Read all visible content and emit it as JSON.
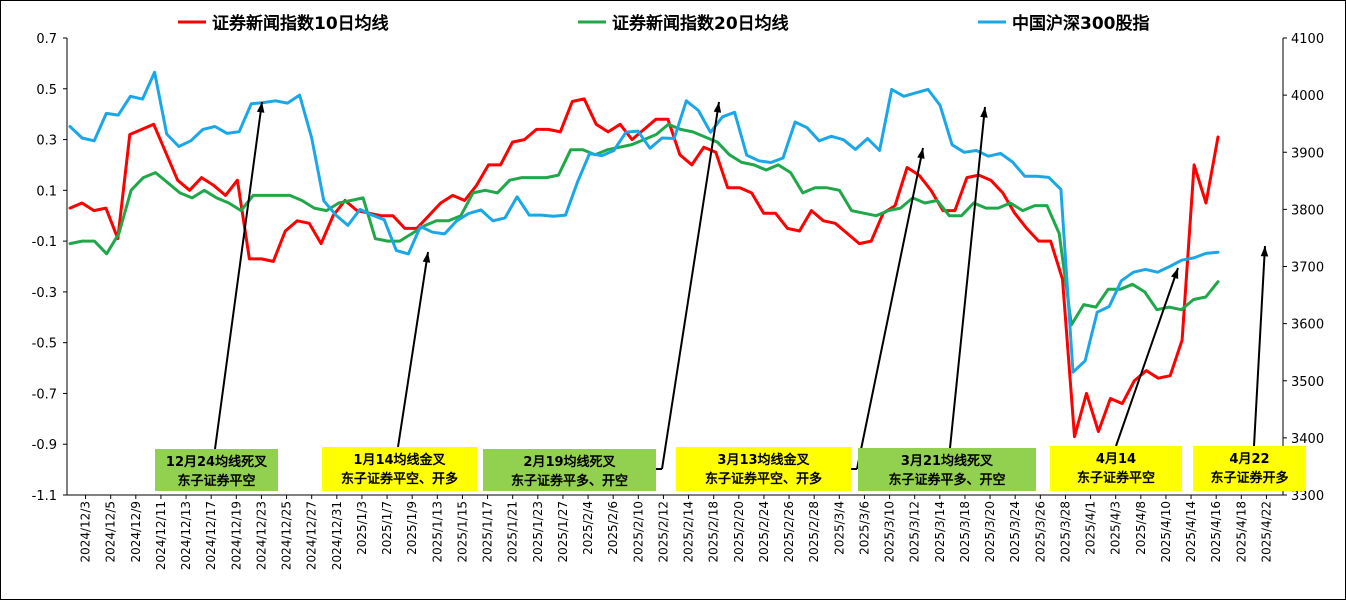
{
  "chart_data": {
    "type": "line",
    "left_axis": {
      "ylim": [
        -1.1,
        0.7
      ],
      "ticks": [
        "0.7",
        "0.5",
        "0.3",
        "0.1",
        "-0.1",
        "-0.3",
        "-0.5",
        "-0.7",
        "-0.9",
        "-1.1"
      ]
    },
    "right_axis": {
      "ylim": [
        3300,
        4100
      ],
      "ticks": [
        "4100",
        "4000",
        "3900",
        "3800",
        "3700",
        "3600",
        "3500",
        "3400",
        "3300"
      ]
    },
    "x_tick_labels": [
      "2024/12/3",
      "2024/12/5",
      "2024/12/9",
      "2024/12/11",
      "2024/12/13",
      "2024/12/17",
      "2024/12/19",
      "2024/12/23",
      "2024/12/25",
      "2024/12/27",
      "2024/12/31",
      "2025/1/3",
      "2025/1/7",
      "2025/1/9",
      "2025/1/13",
      "2025/1/15",
      "2025/1/17",
      "2025/1/21",
      "2025/1/23",
      "2025/1/27",
      "2025/2/4",
      "2025/2/6",
      "2025/2/10",
      "2025/2/12",
      "2025/2/14",
      "2025/2/18",
      "2025/2/20",
      "2025/2/24",
      "2025/2/26",
      "2025/2/28",
      "2025/3/4",
      "2025/3/6",
      "2025/3/10",
      "2025/3/12",
      "2025/3/14",
      "2025/3/18",
      "2025/3/20",
      "2025/3/24",
      "2025/3/26",
      "2025/3/28",
      "2025/4/1",
      "2025/4/3",
      "2025/4/8",
      "2025/4/10",
      "2025/4/14",
      "2025/4/16",
      "2025/4/18",
      "2025/4/22"
    ],
    "legend_position": "top",
    "grid": false,
    "series": [
      {
        "name": "证券新闻指数10日均线",
        "axis": "left",
        "color": "#ff0000",
        "values": [
          0.03,
          0.05,
          0.02,
          0.03,
          -0.09,
          0.32,
          0.34,
          0.36,
          0.25,
          0.14,
          0.1,
          0.15,
          0.12,
          0.08,
          0.14,
          -0.17,
          -0.17,
          -0.18,
          -0.06,
          -0.02,
          -0.03,
          -0.11,
          0.0,
          0.06,
          0.02,
          0.01,
          0.0,
          0.0,
          -0.05,
          -0.05,
          0.0,
          0.05,
          0.08,
          0.06,
          0.12,
          0.2,
          0.2,
          0.29,
          0.3,
          0.34,
          0.34,
          0.33,
          0.45,
          0.46,
          0.36,
          0.33,
          0.36,
          0.3,
          0.34,
          0.38,
          0.38,
          0.24,
          0.2,
          0.27,
          0.25,
          0.11,
          0.11,
          0.09,
          0.01,
          0.01,
          -0.05,
          -0.06,
          0.02,
          -0.02,
          -0.03,
          -0.07,
          -0.11,
          -0.1,
          0.01,
          0.04,
          0.19,
          0.16,
          0.1,
          0.02,
          0.02,
          0.15,
          0.16,
          0.14,
          0.09,
          0.01,
          -0.05,
          -0.1,
          -0.1,
          -0.25,
          -0.87,
          -0.7,
          -0.85,
          -0.72,
          -0.74,
          -0.65,
          -0.61,
          -0.64,
          -0.63,
          -0.49,
          0.2,
          0.05,
          0.31
        ]
      },
      {
        "name": "证券新闻指数20日均线",
        "axis": "left",
        "color": "#1fa84a",
        "values": [
          -0.11,
          -0.1,
          -0.1,
          -0.15,
          -0.07,
          0.1,
          0.15,
          0.17,
          0.13,
          0.09,
          0.07,
          0.1,
          0.07,
          0.05,
          0.02,
          0.08,
          0.08,
          0.08,
          0.08,
          0.06,
          0.03,
          0.02,
          0.05,
          0.06,
          0.07,
          -0.09,
          -0.1,
          -0.1,
          -0.07,
          -0.04,
          -0.02,
          -0.02,
          0.0,
          0.09,
          0.1,
          0.09,
          0.14,
          0.15,
          0.15,
          0.15,
          0.16,
          0.26,
          0.26,
          0.24,
          0.26,
          0.27,
          0.28,
          0.3,
          0.32,
          0.36,
          0.34,
          0.33,
          0.31,
          0.29,
          0.24,
          0.21,
          0.2,
          0.18,
          0.2,
          0.17,
          0.09,
          0.11,
          0.11,
          0.1,
          0.02,
          0.01,
          0.0,
          0.02,
          0.03,
          0.07,
          0.05,
          0.06,
          0.0,
          0.0,
          0.05,
          0.03,
          0.03,
          0.05,
          0.02,
          0.04,
          0.04,
          -0.07,
          -0.43,
          -0.35,
          -0.36,
          -0.29,
          -0.29,
          -0.27,
          -0.3,
          -0.37,
          -0.36,
          -0.37,
          -0.33,
          -0.32,
          -0.26
        ]
      },
      {
        "name": "中国沪深300股指",
        "axis": "right",
        "color": "#1aa7e8",
        "values": [
          3945,
          3925,
          3920,
          3968,
          3965,
          3998,
          3993,
          4040,
          3932,
          3910,
          3920,
          3940,
          3945,
          3933,
          3936,
          3985,
          3987,
          3990,
          3986,
          4000,
          3925,
          3815,
          3790,
          3772,
          3800,
          3790,
          3782,
          3728,
          3722,
          3770,
          3760,
          3757,
          3780,
          3793,
          3799,
          3780,
          3785,
          3822,
          3790,
          3790,
          3788,
          3790,
          3848,
          3898,
          3894,
          3903,
          3935,
          3937,
          3907,
          3925,
          3924,
          3990,
          3973,
          3935,
          3962,
          3970,
          3895,
          3885,
          3882,
          3890,
          3953,
          3943,
          3920,
          3928,
          3922,
          3905,
          3924,
          3903,
          4010,
          3998,
          4004,
          4010,
          3982,
          3913,
          3900,
          3903,
          3893,
          3898,
          3883,
          3858,
          3858,
          3856,
          3835,
          3515,
          3535,
          3620,
          3630,
          3675,
          3690,
          3695,
          3690,
          3700,
          3711,
          3715,
          3723,
          3725
        ]
      }
    ],
    "annotations": [
      {
        "text": [
          "12月24均线死叉",
          "东子证券平空"
        ],
        "bg": "#92d050"
      },
      {
        "text": [
          "1月14均线金叉",
          "东子证券平空、开多"
        ],
        "bg": "#ffff00"
      },
      {
        "text": [
          "2月19均线死叉",
          "东子证券平多、开空"
        ],
        "bg": "#92d050"
      },
      {
        "text": [
          "3月13均线金叉",
          "东子证券平空、开多"
        ],
        "bg": "#ffff00"
      },
      {
        "text": [
          "3月21均线死叉",
          "东子证券平多、开空"
        ],
        "bg": "#92d050"
      },
      {
        "text": [
          "4月14",
          "东子证券平空"
        ],
        "bg": "#ffff00"
      },
      {
        "text": [
          "4月22",
          "东子证券开多"
        ],
        "bg": "#ffff00"
      }
    ]
  }
}
